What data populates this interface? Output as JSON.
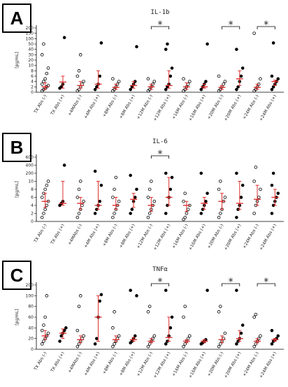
{
  "chart_data": [
    {
      "type": "strip",
      "letter": "A",
      "title": "IL-1b",
      "ylabel": "[pg/mL]",
      "categories": [
        "TX Abs (-)",
        "TX Abs (+)",
        "+4MAbs (-)",
        "+4M Abs (+)",
        "+8M Abs (-)",
        "+8M Abs (+)",
        "+12M Abs (-)",
        "+12M Abs (+)",
        "+16M Abs (-)",
        "+16M Abs (+)",
        "+20M Abs (-)",
        "+20M Abs (+)",
        "+24M Abs (-)",
        "+24M Abs (+)"
      ],
      "ylim": [
        0,
        200
      ],
      "yticks": [
        0,
        2,
        4,
        6,
        8,
        10,
        20,
        30,
        40,
        50,
        100,
        150,
        200
      ],
      "point_color": "#000000",
      "summary_color": "#e03030",
      "groups": [
        {
          "median": 2,
          "q1": 1,
          "q3": 3.5,
          "points": [
            0.5,
            1,
            1.5,
            2,
            2.5,
            3,
            4,
            5,
            7,
            9,
            30,
            50
          ]
        },
        {
          "median": 3.8,
          "q1": 1.5,
          "q3": 6,
          "points": [
            1.5,
            2,
            3,
            110
          ]
        },
        {
          "median": 2.5,
          "q1": 1.5,
          "q3": 4,
          "points": [
            0.5,
            1,
            2,
            3,
            4,
            6,
            8,
            30
          ]
        },
        {
          "median": 3,
          "q1": 1.5,
          "q3": 8,
          "points": [
            1,
            2,
            3,
            6,
            60
          ]
        },
        {
          "median": 1.8,
          "q1": 1,
          "q3": 3,
          "points": [
            0.5,
            1,
            2,
            3,
            4,
            5
          ]
        },
        {
          "median": 2.5,
          "q1": 1.5,
          "q3": 4,
          "points": [
            1,
            2,
            3,
            4,
            45
          ]
        },
        {
          "median": 2,
          "q1": 1,
          "q3": 3,
          "points": [
            0.5,
            1,
            2,
            3,
            4,
            5
          ]
        },
        {
          "median": 2.5,
          "q1": 1.5,
          "q3": 8,
          "points": [
            1,
            2,
            3,
            6,
            9,
            40,
            50
          ]
        },
        {
          "median": 2,
          "q1": 1,
          "q3": 3.5,
          "points": [
            0.5,
            1,
            2,
            3,
            4,
            5
          ]
        },
        {
          "median": 2,
          "q1": 1.5,
          "q3": 3,
          "points": [
            1,
            2,
            3,
            4,
            50
          ]
        },
        {
          "median": 1.8,
          "q1": 1,
          "q3": 2.5,
          "points": [
            0.5,
            1,
            2,
            3,
            4,
            6
          ]
        },
        {
          "median": 5,
          "q1": 2.5,
          "q3": 8,
          "points": [
            1,
            2,
            4,
            6,
            9,
            40
          ]
        },
        {
          "median": 1.8,
          "q1": 1,
          "q3": 3,
          "points": [
            0.5,
            1,
            2,
            3,
            5,
            150
          ]
        },
        {
          "median": 4,
          "q1": 2.5,
          "q3": 4.5,
          "points": [
            1,
            2,
            3,
            4,
            5,
            6,
            60
          ]
        }
      ],
      "annotations": [
        {
          "text": "*",
          "from": 6,
          "to": 7
        },
        {
          "text": "*",
          "from": 10,
          "to": 11
        },
        {
          "text": "*",
          "from": 12,
          "to": 13
        }
      ]
    },
    {
      "type": "strip",
      "letter": "B",
      "title": "IL-6",
      "ylabel": "[pg/mL]",
      "categories": [
        "TX Abs (-)",
        "TX Abs (+)",
        "+4MAbs (-)",
        "+4M Abs (+)",
        "+8M Abs (-)",
        "+8M Abs (+)",
        "+12M Abs (-)",
        "+12M Abs (+)",
        "+16M Abs (-)",
        "+16M Abs (+)",
        "+20M Abs (-)",
        "+20M Abs (+)",
        "+24M Abs (-)",
        "+24M Abs (+)"
      ],
      "ylim": [
        0,
        600
      ],
      "yticks": [
        0,
        2,
        4,
        6,
        8,
        10,
        200,
        400,
        600
      ],
      "point_color": "#000000",
      "summary_color": "#e03030",
      "groups": [
        {
          "median": 5,
          "q1": 3.5,
          "q3": 7,
          "points": [
            1,
            2,
            3,
            4,
            5,
            6,
            7,
            8,
            9,
            10
          ]
        },
        {
          "median": 4.5,
          "q1": 4,
          "q3": 10,
          "points": [
            4,
            4.5,
            5,
            400
          ]
        },
        {
          "median": 4.5,
          "q1": 3,
          "q3": 6,
          "points": [
            1,
            2,
            3,
            4,
            5,
            6,
            8,
            10
          ]
        },
        {
          "median": 4,
          "q1": 3,
          "q3": 10,
          "points": [
            2,
            3,
            4,
            5,
            9,
            250
          ]
        },
        {
          "median": 4,
          "q1": 3,
          "q3": 6,
          "points": [
            1,
            2,
            3,
            4,
            5,
            6,
            8,
            100
          ]
        },
        {
          "median": 5.5,
          "q1": 3.5,
          "q3": 7,
          "points": [
            2,
            3,
            5,
            6,
            8,
            150
          ]
        },
        {
          "median": 4,
          "q1": 2.5,
          "q3": 6,
          "points": [
            1,
            2,
            3,
            4,
            5,
            6,
            8,
            10
          ]
        },
        {
          "median": 6,
          "q1": 4,
          "q3": 100,
          "points": [
            2,
            4,
            6,
            8,
            100,
            200
          ]
        },
        {
          "median": 4,
          "q1": 2.5,
          "q3": 5,
          "points": [
            0.5,
            1,
            2,
            3,
            4,
            5,
            7
          ]
        },
        {
          "median": 4.5,
          "q1": 3,
          "q3": 6,
          "points": [
            2,
            3,
            4,
            5,
            7,
            200
          ]
        },
        {
          "median": 5,
          "q1": 3,
          "q3": 7,
          "points": [
            1,
            2,
            3,
            5,
            6,
            8,
            10
          ]
        },
        {
          "median": 4.5,
          "q1": 3,
          "q3": 10,
          "points": [
            1,
            3,
            4,
            6,
            9,
            200
          ]
        },
        {
          "median": 5.5,
          "q1": 4,
          "q3": 9,
          "points": [
            2,
            4,
            5,
            6,
            8,
            10,
            350
          ]
        },
        {
          "median": 6,
          "q1": 4,
          "q3": 8,
          "points": [
            2,
            4,
            5,
            6,
            7,
            9,
            200
          ]
        }
      ],
      "annotations": [
        {
          "text": "*",
          "from": 6,
          "to": 7
        }
      ]
    },
    {
      "type": "strip",
      "letter": "C",
      "title": "TNFα",
      "ylabel": "[pg/mL]",
      "categories": [
        "TX Abs (-)",
        "TX Abs (+)",
        "+4MAbs (-)",
        "+4M Abs (+)",
        "+8M Abs (-)",
        "+8M Abs (+)",
        "+12M Abs (-)",
        "+12M Abs (+)",
        "+16M Abs (-)",
        "+16M Abs (+)",
        "+20M Abs (-)",
        "+20M Abs (+)",
        "+24M Abs (-)",
        "+24M Abs (+)"
      ],
      "ylim": [
        0,
        200
      ],
      "yticks": [
        0,
        20,
        40,
        60,
        80,
        100,
        200
      ],
      "point_color": "#000000",
      "summary_color": "#e03030",
      "groups": [
        {
          "median": 25,
          "q1": 18,
          "q3": 35,
          "points": [
            10,
            15,
            20,
            25,
            30,
            35,
            45,
            60,
            100
          ]
        },
        {
          "median": 30,
          "q1": 20,
          "q3": 38,
          "points": [
            15,
            25,
            30,
            35,
            40
          ]
        },
        {
          "median": 18,
          "q1": 12,
          "q3": 25,
          "points": [
            5,
            10,
            15,
            20,
            25,
            35,
            80,
            100
          ]
        },
        {
          "median": 60,
          "q1": 15,
          "q3": 100,
          "points": [
            10,
            20,
            60,
            90,
            110
          ]
        },
        {
          "median": 18,
          "q1": 14,
          "q3": 25,
          "points": [
            5,
            10,
            15,
            20,
            25,
            40,
            70
          ]
        },
        {
          "median": 18,
          "q1": 15,
          "q3": 22,
          "points": [
            12,
            15,
            20,
            25,
            100,
            150
          ]
        },
        {
          "median": 15,
          "q1": 12,
          "q3": 20,
          "points": [
            5,
            10,
            15,
            20,
            25,
            70,
            80
          ]
        },
        {
          "median": 22,
          "q1": 15,
          "q3": 60,
          "points": [
            10,
            15,
            25,
            40,
            60,
            150
          ]
        },
        {
          "median": 15,
          "q1": 12,
          "q3": 18,
          "points": [
            5,
            10,
            15,
            20,
            25,
            60,
            80
          ]
        },
        {
          "median": 15,
          "q1": 12,
          "q3": 18,
          "points": [
            10,
            12,
            15,
            18,
            150
          ]
        },
        {
          "median": 18,
          "q1": 12,
          "q3": 25,
          "points": [
            5,
            10,
            15,
            20,
            30,
            70,
            80
          ]
        },
        {
          "median": 20,
          "q1": 15,
          "q3": 35,
          "points": [
            10,
            15,
            20,
            30,
            45,
            150
          ]
        },
        {
          "median": 15,
          "q1": 12,
          "q3": 20,
          "points": [
            5,
            10,
            15,
            20,
            25,
            60,
            65
          ]
        },
        {
          "median": 18,
          "q1": 15,
          "q3": 20,
          "points": [
            10,
            15,
            18,
            20,
            25,
            35
          ]
        }
      ],
      "annotations": [
        {
          "text": "*",
          "from": 6,
          "to": 7
        },
        {
          "text": "*",
          "from": 10,
          "to": 11
        },
        {
          "text": "*",
          "from": 12,
          "to": 13
        }
      ]
    }
  ]
}
